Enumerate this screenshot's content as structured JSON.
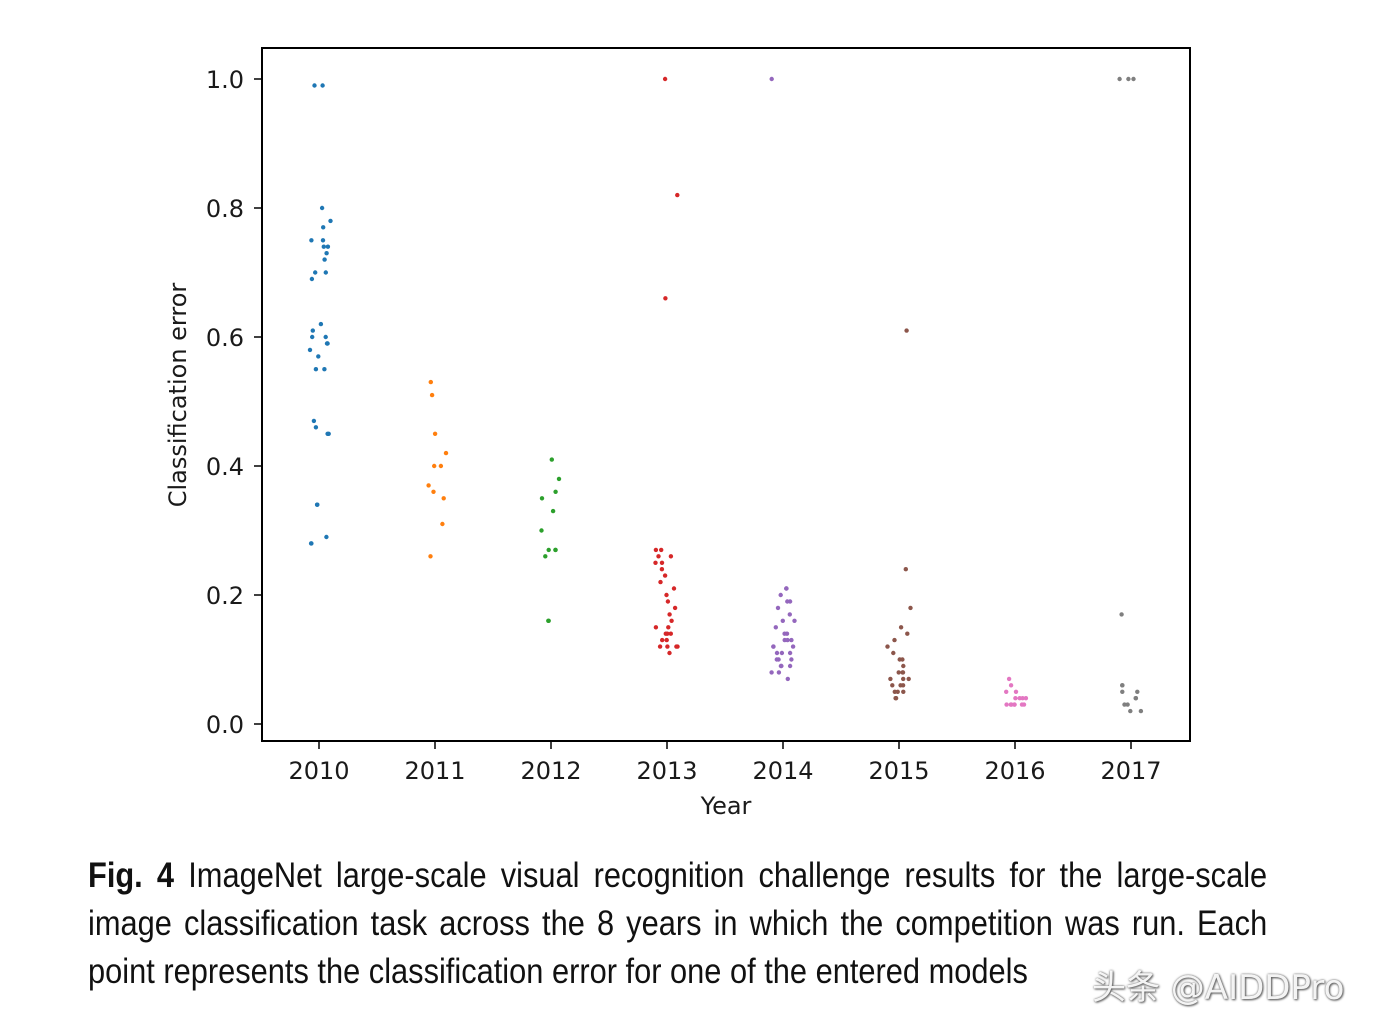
{
  "chart_data": {
    "type": "scatter",
    "title": "",
    "xlabel": "Year",
    "ylabel": "Classification error",
    "xlim": [
      2009.5,
      2017.5
    ],
    "ylim": [
      -0.025,
      1.048
    ],
    "x_ticks": [
      "2010",
      "2011",
      "2012",
      "2013",
      "2014",
      "2015",
      "2016",
      "2017"
    ],
    "y_ticks": [
      "0.0",
      "0.2",
      "0.4",
      "0.6",
      "0.8",
      "1.0"
    ],
    "y_tick_values": [
      0.0,
      0.2,
      0.4,
      0.6,
      0.8,
      1.0
    ],
    "jitter": 0.1,
    "series": [
      {
        "year": 2010,
        "color": "#1f77b4",
        "values": [
          0.99,
          0.99,
          0.8,
          0.78,
          0.77,
          0.75,
          0.75,
          0.74,
          0.74,
          0.73,
          0.72,
          0.7,
          0.7,
          0.69,
          0.62,
          0.61,
          0.6,
          0.6,
          0.59,
          0.59,
          0.58,
          0.57,
          0.55,
          0.55,
          0.47,
          0.46,
          0.45,
          0.45,
          0.34,
          0.34,
          0.29,
          0.28,
          0.28
        ]
      },
      {
        "year": 2011,
        "color": "#ff7f0e",
        "values": [
          0.53,
          0.51,
          0.45,
          0.42,
          0.4,
          0.4,
          0.37,
          0.36,
          0.35,
          0.31,
          0.26
        ]
      },
      {
        "year": 2012,
        "color": "#2ca02c",
        "values": [
          0.41,
          0.38,
          0.36,
          0.35,
          0.33,
          0.3,
          0.27,
          0.27,
          0.27,
          0.26,
          0.16,
          0.16
        ]
      },
      {
        "year": 2013,
        "color": "#d62728",
        "values": [
          1.0,
          0.82,
          0.66,
          0.27,
          0.27,
          0.26,
          0.26,
          0.25,
          0.25,
          0.24,
          0.23,
          0.22,
          0.21,
          0.2,
          0.19,
          0.18,
          0.17,
          0.16,
          0.15,
          0.15,
          0.14,
          0.14,
          0.14,
          0.13,
          0.13,
          0.12,
          0.12,
          0.12,
          0.12,
          0.11
        ]
      },
      {
        "year": 2014,
        "color": "#9467bd",
        "values": [
          1.0,
          0.21,
          0.21,
          0.2,
          0.19,
          0.19,
          0.18,
          0.17,
          0.16,
          0.16,
          0.15,
          0.14,
          0.14,
          0.13,
          0.13,
          0.13,
          0.12,
          0.12,
          0.12,
          0.11,
          0.11,
          0.11,
          0.1,
          0.1,
          0.1,
          0.09,
          0.09,
          0.09,
          0.08,
          0.08,
          0.07
        ]
      },
      {
        "year": 2015,
        "color": "#8c564b",
        "values": [
          0.61,
          0.24,
          0.18,
          0.15,
          0.14,
          0.13,
          0.12,
          0.11,
          0.1,
          0.1,
          0.09,
          0.08,
          0.08,
          0.08,
          0.07,
          0.07,
          0.07,
          0.06,
          0.06,
          0.06,
          0.05,
          0.05,
          0.05,
          0.04,
          0.04
        ]
      },
      {
        "year": 2016,
        "color": "#e377c2",
        "values": [
          0.07,
          0.06,
          0.05,
          0.05,
          0.04,
          0.04,
          0.04,
          0.04,
          0.03,
          0.03,
          0.03,
          0.03,
          0.03,
          0.03,
          0.03
        ]
      },
      {
        "year": 2017,
        "color": "#7f7f7f",
        "values": [
          1.0,
          1.0,
          1.0,
          0.17,
          0.06,
          0.06,
          0.05,
          0.05,
          0.04,
          0.04,
          0.03,
          0.03,
          0.02,
          0.02
        ]
      }
    ]
  },
  "caption": {
    "label": "Fig. 4",
    "text": "ImageNet large-scale visual recognition challenge results for the large-scale image classification task across the 8 years in which the competition was run. Each point represents the classification error for one of the entered models"
  },
  "watermark": "头条 @AIDDPro"
}
